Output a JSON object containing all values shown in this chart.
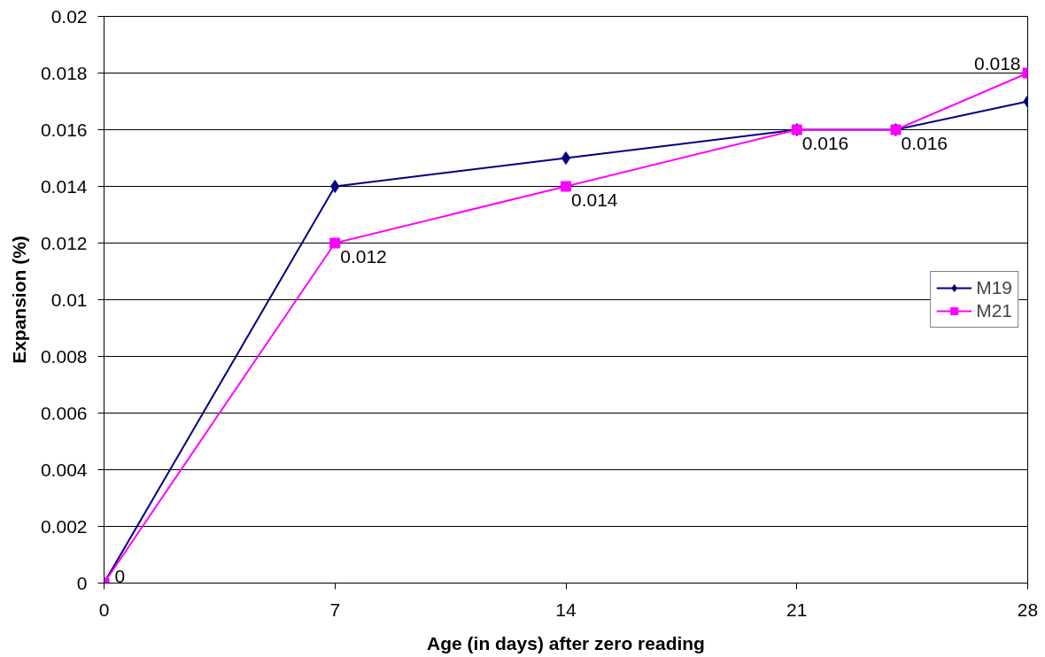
{
  "chart_data": {
    "type": "line",
    "xlabel": "Age (in days) after zero reading",
    "ylabel": "Expansion (%)",
    "x": [
      0,
      7,
      14,
      21,
      24,
      28
    ],
    "xlim": [
      0,
      28
    ],
    "xticks": [
      0,
      7,
      14,
      21,
      28
    ],
    "ylim": [
      0,
      0.02
    ],
    "yticks": [
      0,
      0.002,
      0.004,
      0.006,
      0.008,
      0.01,
      0.012,
      0.014,
      0.016,
      0.018,
      0.02
    ],
    "grid": "y",
    "legend": "right",
    "line_style": "solid",
    "series": [
      {
        "name": "M19",
        "color": "#000080",
        "marker": "diamond",
        "values": [
          0,
          0.014,
          0.015,
          0.016,
          0.016,
          0.017
        ]
      },
      {
        "name": "M21",
        "color": "#ff00ff",
        "marker": "square",
        "values": [
          0,
          0.012,
          0.014,
          0.016,
          0.016,
          0.018
        ],
        "value_labels": [
          "0",
          "0.012",
          "0.014",
          "0.016",
          "0.016",
          "0.018"
        ]
      }
    ]
  }
}
